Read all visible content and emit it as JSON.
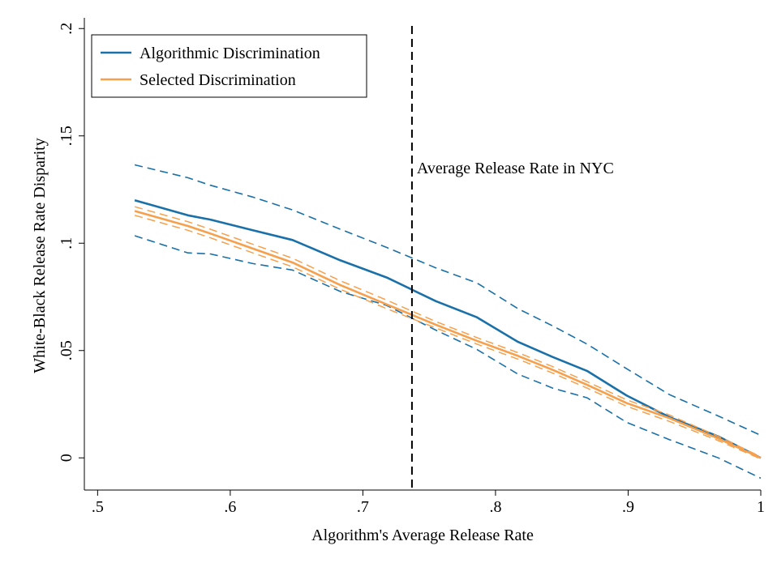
{
  "chart_data": {
    "type": "line",
    "xlabel": "Algorithm's Average Release Rate",
    "ylabel": "White-Black Release Rate Disparity",
    "xlim": [
      0.49,
      1.0
    ],
    "ylim": [
      -0.015,
      0.205
    ],
    "x_ticks": [
      0.5,
      0.6,
      0.7,
      0.8,
      0.9,
      1.0
    ],
    "x_tick_labels": [
      ".5",
      ".6",
      ".7",
      ".8",
      ".9",
      "1"
    ],
    "y_ticks": [
      0,
      0.05,
      0.1,
      0.15,
      0.2
    ],
    "y_tick_labels": [
      "0",
      ".05",
      ".1",
      ".15",
      ".2"
    ],
    "grid": false,
    "legend_position": "top-left",
    "vline": {
      "x": 0.737,
      "label": "Average Release Rate in NYC",
      "style": "dashed",
      "color": "#000000"
    },
    "series": [
      {
        "name": "Algorithmic Discrimination",
        "color": "#1a70a8",
        "x": [
          0.528,
          0.568,
          0.585,
          0.617,
          0.647,
          0.683,
          0.718,
          0.755,
          0.786,
          0.817,
          0.843,
          0.869,
          0.899,
          0.931,
          0.968,
          1.0
        ],
        "y": [
          0.12,
          0.113,
          0.111,
          0.106,
          0.1015,
          0.092,
          0.084,
          0.073,
          0.0655,
          0.054,
          0.047,
          0.0405,
          0.029,
          0.019,
          0.01,
          0.0
        ],
        "ci_lower": [
          0.1035,
          0.0955,
          0.095,
          0.0905,
          0.0875,
          0.0775,
          0.071,
          0.0595,
          0.0505,
          0.039,
          0.0325,
          0.028,
          0.0165,
          0.0085,
          0.0,
          -0.0095
        ],
        "ci_upper": [
          0.1365,
          0.1305,
          0.127,
          0.1215,
          0.1155,
          0.1065,
          0.098,
          0.0885,
          0.0815,
          0.0695,
          0.0615,
          0.053,
          0.0415,
          0.0295,
          0.0195,
          0.0105
        ]
      },
      {
        "name": "Selected Discrimination",
        "color": "#f6a04d",
        "x": [
          0.528,
          0.568,
          0.585,
          0.617,
          0.647,
          0.683,
          0.718,
          0.755,
          0.786,
          0.817,
          0.843,
          0.869,
          0.899,
          0.931,
          0.968,
          1.0
        ],
        "y": [
          0.115,
          0.108,
          0.1045,
          0.0975,
          0.091,
          0.0805,
          0.0715,
          0.062,
          0.0545,
          0.0475,
          0.041,
          0.034,
          0.0255,
          0.0185,
          0.009,
          0.0
        ],
        "ci_lower": [
          0.113,
          0.106,
          0.1025,
          0.0955,
          0.089,
          0.0785,
          0.0695,
          0.0605,
          0.053,
          0.046,
          0.0395,
          0.0325,
          0.024,
          0.017,
          0.008,
          -0.0005
        ],
        "ci_upper": [
          0.117,
          0.11,
          0.1065,
          0.0995,
          0.093,
          0.0825,
          0.0735,
          0.0635,
          0.056,
          0.049,
          0.0425,
          0.0355,
          0.027,
          0.02,
          0.01,
          0.0005
        ]
      }
    ]
  }
}
